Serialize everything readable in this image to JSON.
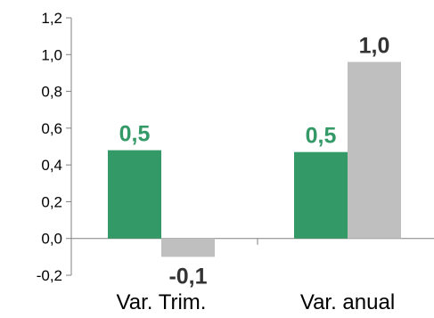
{
  "chart_data": {
    "type": "bar",
    "categories": [
      "Var. Trim.",
      "Var. anual"
    ],
    "series": [
      {
        "values": [
          0.48,
          0.47
        ],
        "color": "#339966",
        "labels": [
          "0,5",
          "0,5"
        ],
        "label_color": "#339966"
      },
      {
        "values": [
          -0.1,
          0.96
        ],
        "color": "#bfbfbf",
        "labels": [
          "-0,1",
          "1,0"
        ],
        "label_color": "#333333"
      }
    ],
    "ylim": [
      -0.2,
      1.2
    ],
    "yticks": [
      -0.2,
      0.0,
      0.2,
      0.4,
      0.6,
      0.8,
      1.0,
      1.2
    ],
    "ytick_labels": [
      "-0,2",
      "0,0",
      "0,2",
      "0,4",
      "0,6",
      "0,8",
      "1,0",
      "1,2"
    ],
    "grid": false,
    "legend": "none",
    "title": "",
    "xlabel": "",
    "ylabel": ""
  }
}
